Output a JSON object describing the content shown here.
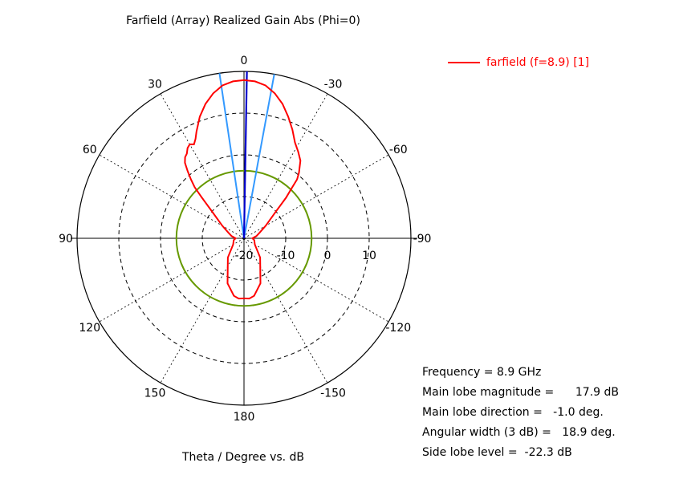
{
  "chart_data": {
    "type": "polar",
    "title": "Farfield (Array) Realized Gain Abs (Phi=0)",
    "xlabel": "Theta / Degree vs. dB",
    "angle_labels": [
      {
        "angle": 0,
        "text": "0"
      },
      {
        "angle": 30,
        "text": "30"
      },
      {
        "angle": 60,
        "text": "60"
      },
      {
        "angle": 90,
        "text": "90"
      },
      {
        "angle": 120,
        "text": "120"
      },
      {
        "angle": 150,
        "text": "150"
      },
      {
        "angle": 180,
        "text": "180"
      },
      {
        "angle": -150,
        "text": "-150"
      },
      {
        "angle": -120,
        "text": "-120"
      },
      {
        "angle": -90,
        "text": "-90"
      },
      {
        "angle": -60,
        "text": "-60"
      },
      {
        "angle": -30,
        "text": "-30"
      }
    ],
    "radial_ticks": [
      "-20",
      "-10",
      "0",
      "10"
    ],
    "radial_range_db": [
      -20,
      20
    ],
    "main_lobe_direction_deg": -1.0,
    "beamwidth_deg": 18.9,
    "side_lobe_level_db": -22.3,
    "series": [
      {
        "name": "farfield (f=8.9) [1]",
        "color": "#ff0000",
        "theta": [
          0,
          4,
          8,
          12,
          16,
          20,
          24,
          26,
          28,
          30,
          32,
          34,
          36,
          38,
          40,
          42,
          44,
          46,
          50,
          60,
          70,
          80,
          90,
          100,
          120,
          140,
          160,
          170,
          175,
          180,
          -175,
          -170,
          -160,
          -140,
          -120,
          -100,
          -90,
          -80,
          -70,
          -60,
          -50,
          -46,
          -44,
          -42,
          -40,
          -36,
          -32,
          -28,
          -24,
          -20,
          -16,
          -12,
          -8,
          -4
        ],
        "gain_db": [
          17.9,
          17.7,
          17.0,
          15.5,
          13.5,
          11.0,
          8.0,
          6.5,
          5.5,
          6.0,
          5.5,
          4.5,
          4.0,
          3.0,
          1.0,
          -1.0,
          -3.0,
          -6.0,
          -10.0,
          -14.0,
          -16.0,
          -17.0,
          -18.0,
          -17.5,
          -17.0,
          -14.0,
          -8.5,
          -6.0,
          -5.5,
          -5.6,
          -5.5,
          -6.0,
          -8.5,
          -14.0,
          -17.0,
          -17.5,
          -18.0,
          -17.0,
          -16.0,
          -14.0,
          -10.0,
          -6.0,
          -4.0,
          -1.0,
          0.5,
          3.0,
          4.5,
          6.0,
          8.5,
          11.0,
          13.5,
          15.5,
          17.0,
          17.7
        ]
      }
    ],
    "markers": {
      "main_lobe_line_color": "#0000cc",
      "beamwidth_lines_color": "#3399ff",
      "side_lobe_circle_color": "#669900"
    }
  },
  "legend": {
    "label": "farfield (f=8.9) [1]",
    "color": "#ff0000"
  },
  "info": [
    {
      "label": "Frequency = 8.9 GHz",
      "value": ""
    },
    {
      "label": "Main lobe magnitude =      ",
      "value": "17.9 dB"
    },
    {
      "label": "Main lobe direction =   ",
      "value": "-1.0 deg."
    },
    {
      "label": "Angular width (3 dB) =   ",
      "value": "18.9 deg."
    },
    {
      "label": "Side lobe level =  ",
      "value": "-22.3 dB"
    }
  ]
}
